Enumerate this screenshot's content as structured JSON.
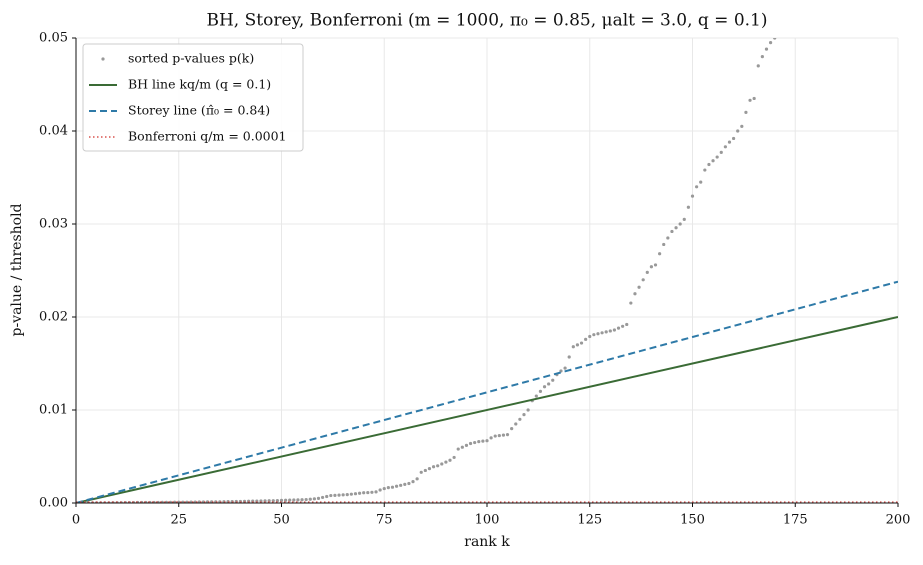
{
  "chart_data": {
    "type": "line",
    "title": "BH, Storey, Bonferroni (m = 1000, π₀ = 0.85, μalt = 3.0, q = 0.1)",
    "xlabel": "rank k",
    "ylabel": "p-value / threshold",
    "xlim": [
      0,
      200
    ],
    "ylim": [
      0,
      0.05
    ],
    "xticks": [
      0,
      25,
      50,
      75,
      100,
      125,
      150,
      175,
      200
    ],
    "yticks": [
      {
        "value": 0,
        "label": "0.00"
      },
      {
        "value": 0.01,
        "label": "0.01"
      },
      {
        "value": 0.02,
        "label": "0.02"
      },
      {
        "value": 0.03,
        "label": "0.03"
      },
      {
        "value": 0.04,
        "label": "0.04"
      },
      {
        "value": 0.05,
        "label": "0.05"
      }
    ],
    "grid": true,
    "legend": "upper left",
    "series": [
      {
        "name": "sorted p-values p(k)",
        "color": "#999999",
        "style": "scatter",
        "x": [
          1,
          2,
          3,
          4,
          5,
          6,
          7,
          8,
          9,
          10,
          11,
          12,
          13,
          14,
          15,
          16,
          17,
          18,
          19,
          20,
          21,
          22,
          23,
          24,
          25,
          26,
          27,
          28,
          29,
          30,
          31,
          32,
          33,
          34,
          35,
          36,
          37,
          38,
          39,
          40,
          41,
          42,
          43,
          44,
          45,
          46,
          47,
          48,
          49,
          50,
          51,
          52,
          53,
          54,
          55,
          56,
          57,
          58,
          59,
          60,
          61,
          62,
          63,
          64,
          65,
          66,
          67,
          68,
          69,
          70,
          71,
          72,
          73,
          74,
          75,
          76,
          77,
          78,
          79,
          80,
          81,
          82,
          83,
          84,
          85,
          86,
          87,
          88,
          89,
          90,
          91,
          92,
          93,
          94,
          95,
          96,
          97,
          98,
          99,
          100,
          101,
          102,
          103,
          104,
          105,
          106,
          107,
          108,
          109,
          110,
          111,
          112,
          113,
          114,
          115,
          116,
          117,
          118,
          119,
          120,
          121,
          122,
          123,
          124,
          125,
          126,
          127,
          128,
          129,
          130,
          131,
          132,
          133,
          134,
          135,
          136,
          137,
          138,
          139,
          140,
          141,
          142,
          143,
          144,
          145,
          146,
          147,
          148,
          149,
          150,
          151,
          152,
          153,
          154,
          155,
          156,
          157,
          158,
          159,
          160,
          161,
          162,
          163,
          164,
          165,
          166,
          167,
          168,
          169,
          170
        ],
        "values": [
          0.0,
          0.0,
          1e-05,
          1e-05,
          1e-05,
          2e-05,
          2e-05,
          2e-05,
          3e-05,
          3e-05,
          3e-05,
          4e-05,
          4e-05,
          4e-05,
          5e-05,
          5e-05,
          5e-05,
          6e-05,
          6e-05,
          6e-05,
          7e-05,
          7e-05,
          7e-05,
          8e-05,
          8e-05,
          9e-05,
          9e-05,
          0.0001,
          0.0001,
          0.00011,
          0.00011,
          0.00012,
          0.00012,
          0.00013,
          0.00013,
          0.00014,
          0.00015,
          0.00015,
          0.00016,
          0.00017,
          0.00018,
          0.00019,
          0.0002,
          0.00021,
          0.00022,
          0.00023,
          0.00024,
          0.00025,
          0.00026,
          0.00028,
          0.0003,
          0.00031,
          0.00032,
          0.00034,
          0.00035,
          0.00037,
          0.0004,
          0.00045,
          0.0005,
          0.0006,
          0.0007,
          0.0008,
          0.00082,
          0.00085,
          0.00088,
          0.0009,
          0.00095,
          0.001,
          0.00105,
          0.0011,
          0.00112,
          0.00115,
          0.0012,
          0.0014,
          0.00155,
          0.00165,
          0.0017,
          0.0018,
          0.0019,
          0.002,
          0.0021,
          0.0023,
          0.0026,
          0.0033,
          0.0035,
          0.0037,
          0.0039,
          0.004,
          0.0042,
          0.0044,
          0.0046,
          0.0049,
          0.0058,
          0.006,
          0.0062,
          0.0064,
          0.0065,
          0.0066,
          0.00665,
          0.0067,
          0.007,
          0.0072,
          0.00725,
          0.0073,
          0.00735,
          0.008,
          0.0085,
          0.009,
          0.0095,
          0.01,
          0.011,
          0.0115,
          0.012,
          0.0125,
          0.0128,
          0.0132,
          0.0138,
          0.0142,
          0.0145,
          0.0157,
          0.0168,
          0.017,
          0.0172,
          0.0176,
          0.0179,
          0.0181,
          0.0182,
          0.0183,
          0.0184,
          0.0185,
          0.0186,
          0.0188,
          0.019,
          0.0192,
          0.0215,
          0.0225,
          0.0232,
          0.024,
          0.0248,
          0.0254,
          0.0256,
          0.0268,
          0.0278,
          0.0285,
          0.0292,
          0.0296,
          0.03,
          0.0305,
          0.0318,
          0.033,
          0.034,
          0.0345,
          0.0358,
          0.0364,
          0.0368,
          0.0372,
          0.0377,
          0.0383,
          0.0388,
          0.0392,
          0.04,
          0.0405,
          0.042,
          0.0433,
          0.0435,
          0.047,
          0.048,
          0.0488,
          0.0495,
          0.05
        ]
      },
      {
        "name": "BH line kq/m (q = 0.1)",
        "color": "#3a6b35",
        "style": "solid",
        "x": [
          0,
          200
        ],
        "values": [
          0,
          0.02
        ]
      },
      {
        "name": "Storey line (π̂₀ = 0.84)",
        "color": "#2e7aa8",
        "style": "dashed",
        "x": [
          0,
          200
        ],
        "values": [
          0,
          0.0238
        ]
      },
      {
        "name": "Bonferroni q/m = 0.0001",
        "color": "#d9534f",
        "style": "dotted",
        "x": [
          0,
          200
        ],
        "values": [
          0.0001,
          0.0001
        ]
      }
    ]
  }
}
